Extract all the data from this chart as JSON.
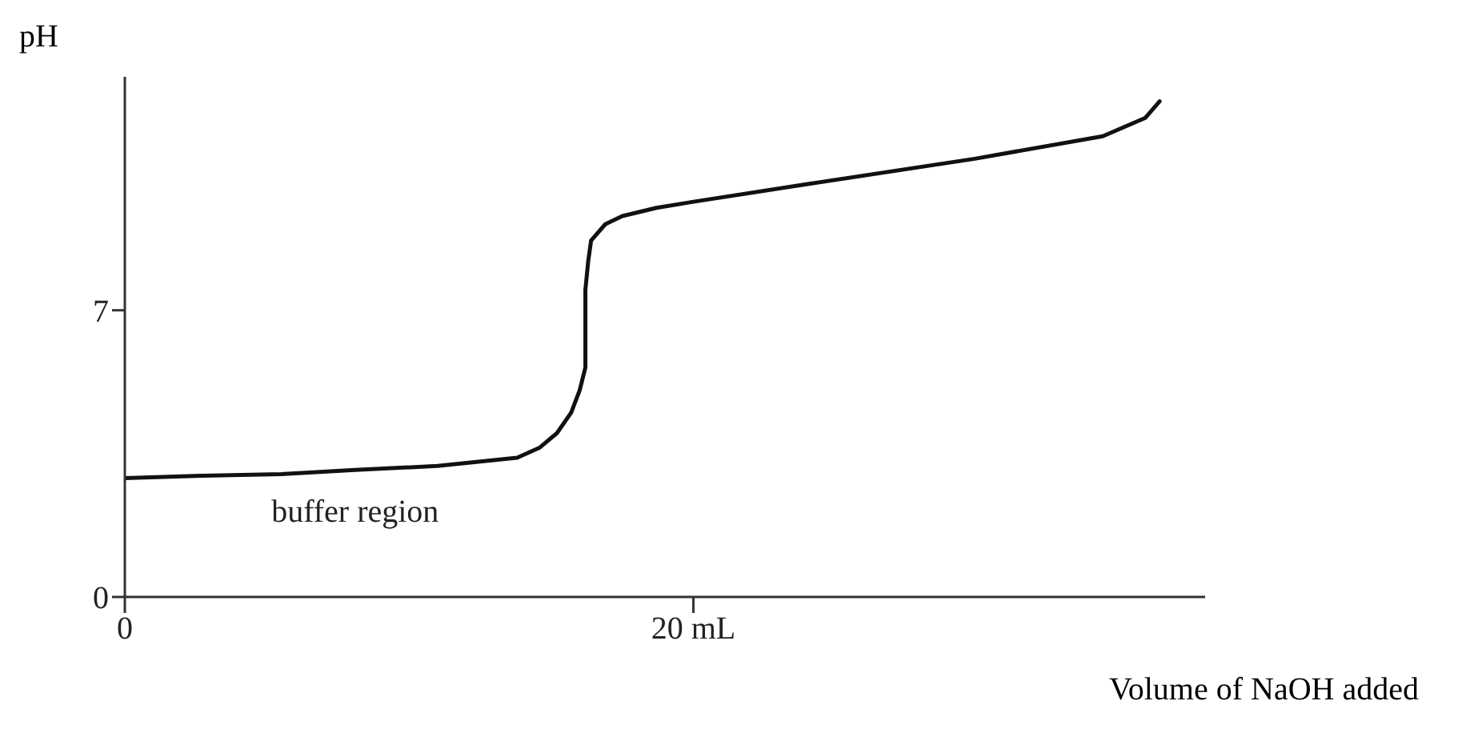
{
  "chart_data": {
    "type": "line",
    "xlabel": "Volume of NaOH added",
    "ylabel": "pH",
    "xlim": [
      0,
      38
    ],
    "ylim": [
      0,
      12.7
    ],
    "xticks": [
      {
        "value": 0,
        "label": "0"
      },
      {
        "value": 20,
        "label": "20 mL"
      }
    ],
    "yticks": [
      {
        "value": 0,
        "label": "0"
      },
      {
        "value": 7,
        "label": "7"
      }
    ],
    "marker": "none",
    "line_style": "solid",
    "series": [
      {
        "color": "#111111",
        "x": [
          0,
          2.7,
          5.5,
          8.1,
          11,
          13.8,
          14.6,
          15.2,
          15.7,
          16.0,
          16.2,
          16.2,
          16.2,
          16.3,
          16.4,
          16.9,
          17.5,
          18.7,
          20,
          24.2,
          29.9,
          34.4,
          35.9,
          36.4
        ],
        "values": [
          2.9,
          2.96,
          3.0,
          3.1,
          3.2,
          3.4,
          3.65,
          4.0,
          4.5,
          5.05,
          5.6,
          6.1,
          7.5,
          8.2,
          8.7,
          9.1,
          9.3,
          9.5,
          9.65,
          10.1,
          10.7,
          11.25,
          11.7,
          12.1
        ]
      }
    ],
    "annotations": [
      {
        "text": "buffer region",
        "x": 8.1,
        "y": 3.1
      }
    ]
  }
}
